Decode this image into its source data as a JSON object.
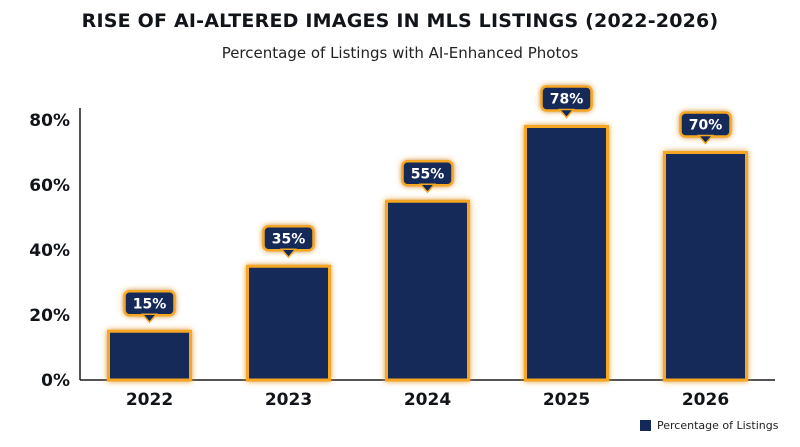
{
  "chart_data": {
    "type": "bar",
    "title": "RISE OF AI-ALTERED IMAGES IN MLS LISTINGS (2022-2026)",
    "subtitle": "Percentage of Listings with AI-Enhanced Photos",
    "categories": [
      "2022",
      "2023",
      "2024",
      "2025",
      "2026"
    ],
    "series": [
      {
        "name": "Percentage of Listings",
        "values": [
          15,
          35,
          55,
          78,
          70
        ]
      }
    ],
    "data_labels": [
      "15%",
      "35%",
      "55%",
      "78%",
      "70%"
    ],
    "y_ticks": [
      0,
      20,
      40,
      60,
      80
    ],
    "y_tick_labels": [
      "0%",
      "20%",
      "40%",
      "60%",
      "80%"
    ],
    "ylim": [
      0,
      80
    ],
    "xlabel": "",
    "ylabel": "",
    "grid": false,
    "legend_position": "bottom-right",
    "colors": {
      "bar_fill": "#13295a",
      "bar_glow": "#f5a623",
      "label_bg": "#13295a",
      "label_text": "#ffffff",
      "axis": "#1a1a1a",
      "text": "#111418"
    }
  }
}
